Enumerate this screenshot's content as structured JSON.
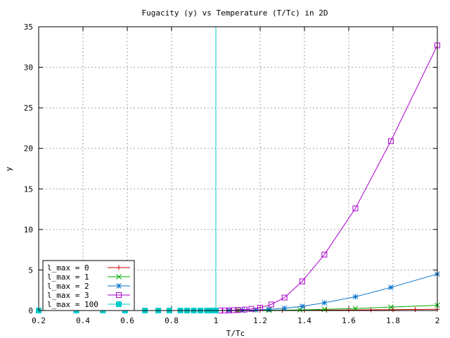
{
  "chart_data": {
    "type": "line",
    "title": "Fugacity (y) vs Temperature (T/Tc) in 2D",
    "xlabel": "T/Tc",
    "ylabel": "y",
    "xlim": [
      0.2,
      2
    ],
    "ylim": [
      0,
      35
    ],
    "xticks": [
      "0.2",
      "0.4",
      "0.6",
      "0.8",
      "1",
      "1.2",
      "1.4",
      "1.6",
      "1.8",
      "2"
    ],
    "yticks": [
      "0",
      "5",
      "10",
      "15",
      "20",
      "25",
      "30",
      "35"
    ],
    "grid": true,
    "legend_position": "bottom-left",
    "vertical_line_x": 1,
    "series": [
      {
        "name": "l_max = 0",
        "color": "#cc0000",
        "marker": "plus",
        "x": [
          1.0,
          1.1,
          1.2,
          1.3,
          1.4,
          1.5,
          1.6,
          1.7,
          1.8,
          1.9,
          2.0
        ],
        "y": [
          0,
          0,
          0.01,
          0.02,
          0.03,
          0.05,
          0.07,
          0.09,
          0.11,
          0.13,
          0.15
        ]
      },
      {
        "name": "l_max = 1",
        "color": "#00aa00",
        "marker": "x",
        "x": [
          1.0,
          1.1,
          1.24,
          1.38,
          1.49,
          1.63,
          1.79,
          2.0
        ],
        "y": [
          0,
          0.01,
          0.03,
          0.08,
          0.15,
          0.25,
          0.42,
          0.65
        ]
      },
      {
        "name": "l_max = 2",
        "color": "#0070cc",
        "marker": "star",
        "x": [
          1.0,
          1.06,
          1.12,
          1.18,
          1.24,
          1.31,
          1.39,
          1.49,
          1.63,
          1.79,
          2.0
        ],
        "y": [
          0,
          0.01,
          0.03,
          0.07,
          0.15,
          0.28,
          0.52,
          0.95,
          1.7,
          2.85,
          4.5
        ]
      },
      {
        "name": "l_max = 3",
        "color": "#aa00cc",
        "marker": "square",
        "x": [
          1.0,
          1.02,
          1.04,
          1.06,
          1.08,
          1.1,
          1.13,
          1.16,
          1.2,
          1.25,
          1.31,
          1.39,
          1.49,
          1.63,
          1.79,
          2.0
        ],
        "y": [
          0,
          0,
          0.01,
          0.02,
          0.04,
          0.07,
          0.12,
          0.2,
          0.35,
          0.75,
          1.6,
          3.6,
          6.9,
          12.6,
          20.9,
          32.7
        ]
      },
      {
        "name": "l_max = 100",
        "color": "#00cccc",
        "marker": "filled-square",
        "x": [
          0.2,
          0.37,
          0.49,
          0.59,
          0.68,
          0.74,
          0.79,
          0.84,
          0.87,
          0.9,
          0.93,
          0.96,
          0.98,
          1.0
        ],
        "y": [
          0,
          0,
          0,
          0,
          0,
          0,
          0,
          0,
          0,
          0,
          0,
          0,
          0,
          0
        ]
      }
    ]
  }
}
